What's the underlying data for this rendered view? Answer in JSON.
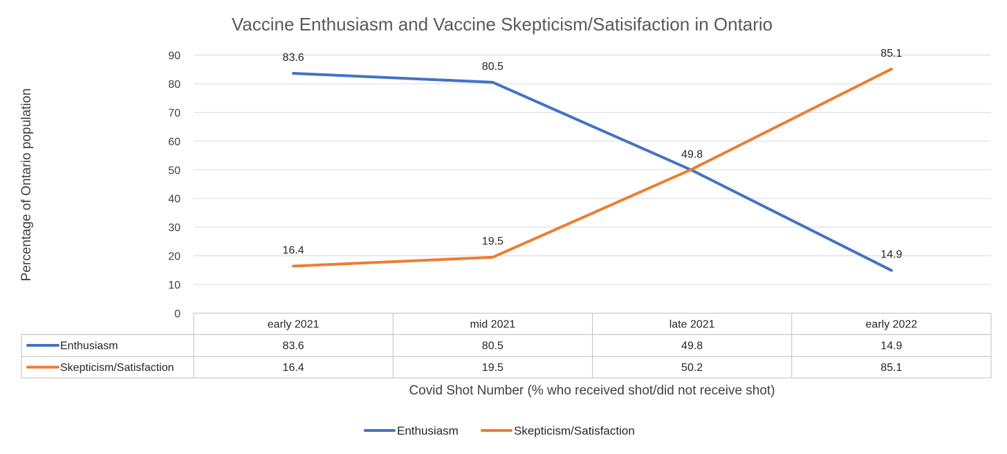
{
  "chart_data": {
    "type": "line",
    "title": "Vaccine Enthusiasm and Vaccine Skepticism/Satisifaction in Ontario",
    "xlabel": "Covid Shot Number (% who received shot/did not receive shot)",
    "ylabel": "Percentage of Ontario population",
    "categories": [
      "early 2021",
      "mid 2021",
      "late 2021",
      "early 2022"
    ],
    "yticks": [
      0,
      10,
      20,
      30,
      40,
      50,
      60,
      70,
      80,
      90
    ],
    "ylim": [
      0,
      90
    ],
    "grid": true,
    "legend_position": "bottom",
    "data_table": true,
    "series": [
      {
        "name": "Enthusiasm",
        "values": [
          83.6,
          80.5,
          49.8,
          14.9
        ],
        "color": "#4472C4",
        "data_labels": [
          "83.6",
          "80.5",
          "49.8",
          "14.9"
        ]
      },
      {
        "name": "Skepticism/Satisfaction",
        "values": [
          16.4,
          19.5,
          50.2,
          85.1
        ],
        "color": "#ED7D31",
        "data_labels": [
          "16.4",
          "19.5",
          "",
          "85.1"
        ]
      }
    ]
  }
}
